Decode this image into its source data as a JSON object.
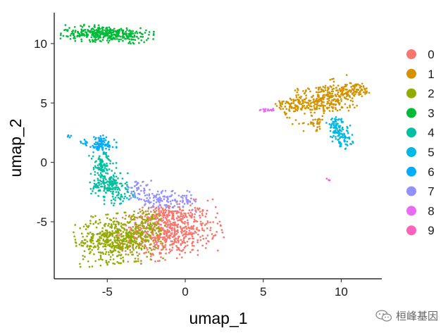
{
  "chart_data": {
    "type": "scatter",
    "xlabel": "umap_1",
    "ylabel": "umap_2",
    "xlim": [
      -8.4,
      12.6
    ],
    "ylim": [
      -9.8,
      12.6
    ],
    "xticks": [
      -5,
      0,
      5,
      10
    ],
    "yticks": [
      -5,
      0,
      5,
      10
    ],
    "xtick_labels": [
      "-5",
      "0",
      "5",
      "10"
    ],
    "ytick_labels": [
      "-5",
      "0",
      "5",
      "10"
    ],
    "grid": false,
    "legend_position": "right",
    "series": [
      {
        "name": "0",
        "color": "#F8766D",
        "clusters": [
          {
            "cx": -1.0,
            "cy": -5.8,
            "sx": 1.5,
            "sy": 1.05,
            "n": 650,
            "rot": 0.2
          },
          {
            "cx": -1.6,
            "cy": -4.4,
            "sx": 0.6,
            "sy": 0.4,
            "n": 60,
            "rot": 0
          }
        ]
      },
      {
        "name": "1",
        "color": "#D39200",
        "clusters": [
          {
            "cx": 8.9,
            "cy": 5.3,
            "sx": 1.25,
            "sy": 0.65,
            "n": 330,
            "rot": 0.35
          },
          {
            "cx": 10.9,
            "cy": 6.1,
            "sx": 0.55,
            "sy": 0.28,
            "n": 70,
            "rot": 0
          },
          {
            "cx": 7.0,
            "cy": 4.9,
            "sx": 0.55,
            "sy": 0.3,
            "n": 60,
            "rot": 0
          },
          {
            "cx": 8.3,
            "cy": 3.3,
            "sx": 0.35,
            "sy": 0.3,
            "n": 30,
            "rot": 0
          }
        ]
      },
      {
        "name": "2",
        "color": "#93AA00",
        "clusters": [
          {
            "cx": -4.3,
            "cy": -6.4,
            "sx": 1.25,
            "sy": 0.95,
            "n": 560,
            "rot": 0.15
          },
          {
            "cx": -2.4,
            "cy": -5.0,
            "sx": 0.5,
            "sy": 0.5,
            "n": 60,
            "rot": 0
          }
        ]
      },
      {
        "name": "3",
        "color": "#00BA38",
        "clusters": [
          {
            "cx": -5.0,
            "cy": 10.8,
            "sx": 1.35,
            "sy": 0.32,
            "n": 380,
            "rot": -0.06
          }
        ]
      },
      {
        "name": "4",
        "color": "#00C19F",
        "clusters": [
          {
            "cx": -4.9,
            "cy": -1.9,
            "sx": 0.55,
            "sy": 0.45,
            "n": 150,
            "rot": 0
          },
          {
            "cx": -5.3,
            "cy": -0.4,
            "sx": 0.4,
            "sy": 0.6,
            "n": 100,
            "rot": 0
          },
          {
            "cx": -4.2,
            "cy": -3.0,
            "sx": 0.45,
            "sy": 0.3,
            "n": 40,
            "rot": 0
          }
        ]
      },
      {
        "name": "5",
        "color": "#00B9E3",
        "clusters": [
          {
            "cx": 9.8,
            "cy": 2.8,
            "sx": 0.35,
            "sy": 0.4,
            "n": 60,
            "rot": 0
          },
          {
            "cx": 10.1,
            "cy": 1.9,
            "sx": 0.3,
            "sy": 0.35,
            "n": 50,
            "rot": 0
          },
          {
            "cx": 9.6,
            "cy": 3.5,
            "sx": 0.25,
            "sy": 0.2,
            "n": 20,
            "rot": 0
          }
        ]
      },
      {
        "name": "6",
        "color": "#00ADFA",
        "clusters": [
          {
            "cx": -5.4,
            "cy": 1.5,
            "sx": 0.45,
            "sy": 0.35,
            "n": 100,
            "rot": 0
          },
          {
            "cx": -7.4,
            "cy": 2.2,
            "sx": 0.1,
            "sy": 0.1,
            "n": 6,
            "rot": 0
          },
          {
            "cx": -6.5,
            "cy": 1.7,
            "sx": 0.25,
            "sy": 0.12,
            "n": 8,
            "rot": 0
          }
        ]
      },
      {
        "name": "7",
        "color": "#9590FF",
        "clusters": [
          {
            "cx": -1.6,
            "cy": -3.1,
            "sx": 0.9,
            "sy": 0.32,
            "n": 100,
            "rot": 0
          },
          {
            "cx": -3.1,
            "cy": -2.2,
            "sx": 0.5,
            "sy": 0.3,
            "n": 40,
            "rot": 0
          },
          {
            "cx": 0.2,
            "cy": -3.4,
            "sx": 0.3,
            "sy": 0.35,
            "n": 25,
            "rot": 0
          }
        ]
      },
      {
        "name": "8",
        "color": "#E76BF3",
        "clusters": [
          {
            "cx": 5.2,
            "cy": 4.4,
            "sx": 0.3,
            "sy": 0.07,
            "n": 22,
            "rot": 0
          }
        ]
      },
      {
        "name": "9",
        "color": "#FF62BC",
        "clusters": [
          {
            "cx": 9.2,
            "cy": -1.5,
            "sx": 0.06,
            "sy": 0.08,
            "n": 4,
            "rot": 0
          }
        ]
      }
    ]
  },
  "watermark": {
    "text": "桓峰基因",
    "icon": "wechat-bubbles-icon"
  }
}
